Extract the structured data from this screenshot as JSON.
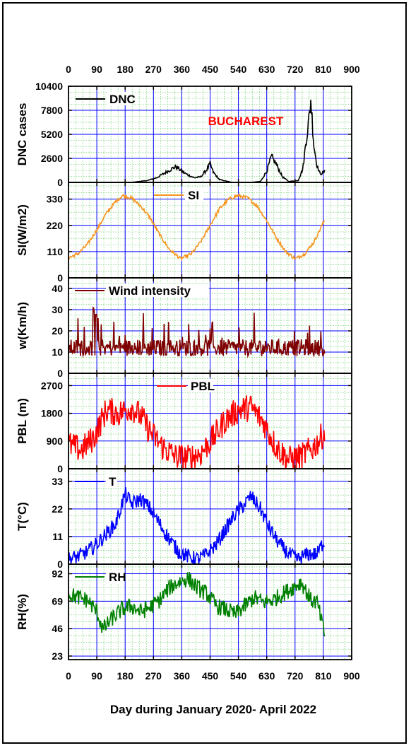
{
  "xaxis": {
    "title": "Day during January 2020- April 2022",
    "ticks": [
      0,
      90,
      180,
      270,
      360,
      450,
      540,
      630,
      720,
      810,
      900
    ],
    "range": [
      0,
      900
    ]
  },
  "location_label": "BUCHAREST",
  "colors": {
    "dnc": "#000000",
    "si": "#f7941d",
    "wind": "#7f0000",
    "pbl": "#ff0000",
    "t": "#0000ff",
    "rh": "#008000",
    "grid_major": "#0000ff",
    "grid_minor": "#7fd67f",
    "location": "#ff0000"
  },
  "chart_data": [
    {
      "type": "line",
      "ylabel": "DNC cases",
      "legend": "DNC",
      "ylim": [
        0,
        10400
      ],
      "yticks": [
        0,
        2600,
        5200,
        7800,
        10400
      ],
      "x": [
        0,
        200,
        250,
        280,
        300,
        320,
        340,
        350,
        360,
        380,
        400,
        420,
        440,
        450,
        460,
        480,
        520,
        580,
        610,
        630,
        645,
        660,
        680,
        700,
        730,
        745,
        755,
        765,
        770,
        775,
        780,
        790,
        800,
        815
      ],
      "y": [
        0,
        0,
        200,
        500,
        900,
        1300,
        1700,
        1500,
        1200,
        800,
        500,
        600,
        1400,
        2000,
        1100,
        300,
        0,
        0,
        100,
        1200,
        2800,
        2000,
        600,
        100,
        200,
        1500,
        4500,
        7000,
        9000,
        6500,
        4000,
        1800,
        900,
        1200
      ]
    },
    {
      "type": "line",
      "ylabel": "SI(W/m2)",
      "legend": "SI",
      "ylim": [
        0,
        400
      ],
      "yticks": [
        0,
        110,
        220,
        330
      ],
      "x": [
        0,
        30,
        60,
        90,
        120,
        150,
        172,
        200,
        230,
        260,
        290,
        320,
        356,
        390,
        420,
        450,
        480,
        510,
        537,
        570,
        600,
        630,
        660,
        690,
        721,
        750,
        780,
        815
      ],
      "y": [
        85,
        100,
        140,
        200,
        270,
        320,
        345,
        335,
        300,
        250,
        180,
        120,
        80,
        100,
        150,
        220,
        290,
        330,
        345,
        335,
        300,
        240,
        170,
        110,
        80,
        100,
        150,
        245
      ]
    },
    {
      "type": "line",
      "ylabel": "w(Km/h)",
      "legend": "Wind intensity",
      "ylim": [
        0,
        45
      ],
      "yticks": [
        0,
        10,
        20,
        30,
        40
      ]
    },
    {
      "type": "line",
      "ylabel": "PBL (m)",
      "legend": "PBL",
      "ylim": [
        0,
        3100
      ],
      "yticks": [
        0,
        900,
        1800,
        2700
      ],
      "x": [
        0,
        40,
        80,
        120,
        160,
        200,
        230,
        260,
        300,
        340,
        380,
        420,
        460,
        500,
        540,
        580,
        620,
        660,
        700,
        740,
        780,
        815
      ],
      "y": [
        800,
        600,
        1000,
        1900,
        1800,
        2000,
        1700,
        1200,
        700,
        400,
        350,
        500,
        1000,
        1600,
        1900,
        2000,
        1500,
        700,
        300,
        400,
        700,
        1200
      ]
    },
    {
      "type": "line",
      "ylabel": "T(°C)",
      "legend": "T",
      "ylim": [
        0,
        38
      ],
      "yticks": [
        0,
        11,
        22,
        33
      ],
      "x": [
        0,
        30,
        60,
        90,
        120,
        150,
        180,
        200,
        230,
        260,
        290,
        320,
        350,
        380,
        410,
        440,
        470,
        500,
        530,
        560,
        580,
        610,
        640,
        670,
        700,
        730,
        760,
        790,
        815
      ],
      "y": [
        2,
        3,
        5,
        8,
        12,
        16,
        28,
        24,
        26,
        22,
        16,
        10,
        5,
        3,
        2,
        4,
        8,
        14,
        20,
        24,
        27,
        22,
        14,
        8,
        4,
        2,
        4,
        4,
        10
      ]
    },
    {
      "type": "line",
      "ylabel": "RH(%)",
      "legend": "RH",
      "ylim": [
        20,
        100
      ],
      "yticks": [
        23,
        46,
        69,
        92
      ],
      "x": [
        0,
        30,
        60,
        90,
        110,
        140,
        170,
        200,
        230,
        260,
        290,
        320,
        350,
        380,
        410,
        440,
        470,
        500,
        530,
        560,
        590,
        620,
        650,
        680,
        710,
        740,
        770,
        790,
        815
      ],
      "y": [
        75,
        72,
        70,
        60,
        45,
        55,
        62,
        65,
        60,
        64,
        70,
        80,
        85,
        88,
        80,
        75,
        65,
        62,
        58,
        65,
        72,
        68,
        70,
        75,
        80,
        85,
        70,
        68,
        40
      ]
    }
  ]
}
